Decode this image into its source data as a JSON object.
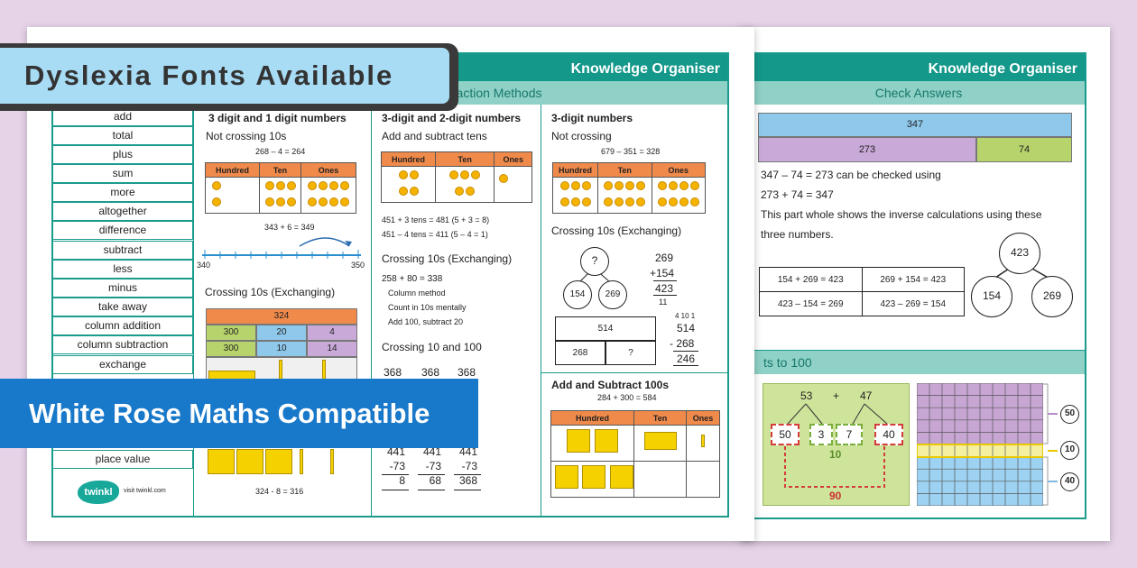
{
  "banners": {
    "dyslexia": "Dyslexia Fonts Available",
    "white_rose": "White Rose Maths Compatible"
  },
  "headers": {
    "knowledge_organiser": "Knowledge Organiser",
    "subtraction_methods": "traction Methods",
    "check_answers": "Check Answers",
    "bonds_to_100": "ts to 100"
  },
  "vocab": [
    "add",
    "total",
    "plus",
    "sum",
    "more",
    "altogether",
    "difference",
    "subtract",
    "less",
    "minus",
    "take away",
    "column addition",
    "column subtraction",
    "exchange",
    "place value"
  ],
  "brand": {
    "logo": "twinkl",
    "url": "visit twinkl.com"
  },
  "colA": {
    "title": "3 digit and 1 digit numbers",
    "not_crossing": "Not crossing 10s",
    "eq1": "268 – 4 = 264",
    "pv_headers": [
      "Hundred",
      "Ten",
      "Ones"
    ],
    "jump_label": "343 + 6 = 349",
    "nl_start": "340",
    "nl_end": "350",
    "crossing": "Crossing 10s (Exchanging)",
    "bar_top": "324",
    "bar_row1": [
      "300",
      "20",
      "4"
    ],
    "bar_row2": [
      "300",
      "10",
      "14"
    ],
    "eq_bottom": "324 - 8 = 316"
  },
  "colB": {
    "title": "3-digit and 2-digit numbers",
    "sub": "Add and subtract tens",
    "eq1": "451 + 3 tens = 481 (5 + 3 = 8)",
    "eq2": "451 – 4 tens = 411 (5 – 4 = 1)",
    "crossing": "Crossing 10s (Exchanging)",
    "eq3": "258 + 80 = 338",
    "bullets": [
      "Column method",
      "Count in 10s mentally",
      "Add 100, subtract 20"
    ],
    "crossing2": "Crossing 10 and 100",
    "top_nums": [
      "368",
      "368",
      "368"
    ],
    "cols": [
      [
        "441",
        "-73",
        "8"
      ],
      [
        "441",
        "-73",
        "68"
      ],
      [
        "441",
        "-73",
        "368"
      ]
    ]
  },
  "colC": {
    "title": "3-digit numbers",
    "not_crossing": "Not crossing",
    "eq1": "679 – 351 = 328",
    "crossing": "Crossing 10s (Exchanging)",
    "q": "?",
    "c1": "154",
    "c2": "269",
    "add_top": "269",
    "add_mid": "+154",
    "add_ans": "423",
    "add_carry": "11",
    "bar_top": "514",
    "bar_l": "268",
    "bar_r": "?",
    "sub_carry": "4 10 1",
    "sub_top": "514",
    "sub_mid": "- 268",
    "sub_ans": "246",
    "hundreds_title": "Add and Subtract 100s",
    "hundreds_eq": "284 + 300 = 584"
  },
  "check": {
    "bar_top": "347",
    "bar_l": "273",
    "bar_r": "74",
    "line1": "347 – 74 = 273 can be checked using",
    "line2": "273 + 74 = 347",
    "line3": "This part whole shows the inverse calculations using these",
    "line4": "three numbers.",
    "whole": "423",
    "part1": "154",
    "part2": "269",
    "table": [
      [
        "154 + 269 = 423",
        "269 + 154 = 423"
      ],
      [
        "423 – 154 = 269",
        "423 – 269 = 154"
      ]
    ]
  },
  "bonds": {
    "n1": "53",
    "plus": "+",
    "n2": "47",
    "a": "50",
    "b": "3",
    "c": "7",
    "d": "40",
    "ten": "10",
    "ninety": "90",
    "r1": "50",
    "r2": "10",
    "r3": "40"
  },
  "colors": {
    "teal": "#13988a",
    "mint": "#8fd1c6",
    "orange": "#f08a4b",
    "banner_blue": "#a8dcf5",
    "ribbon_blue": "#1878c9"
  }
}
